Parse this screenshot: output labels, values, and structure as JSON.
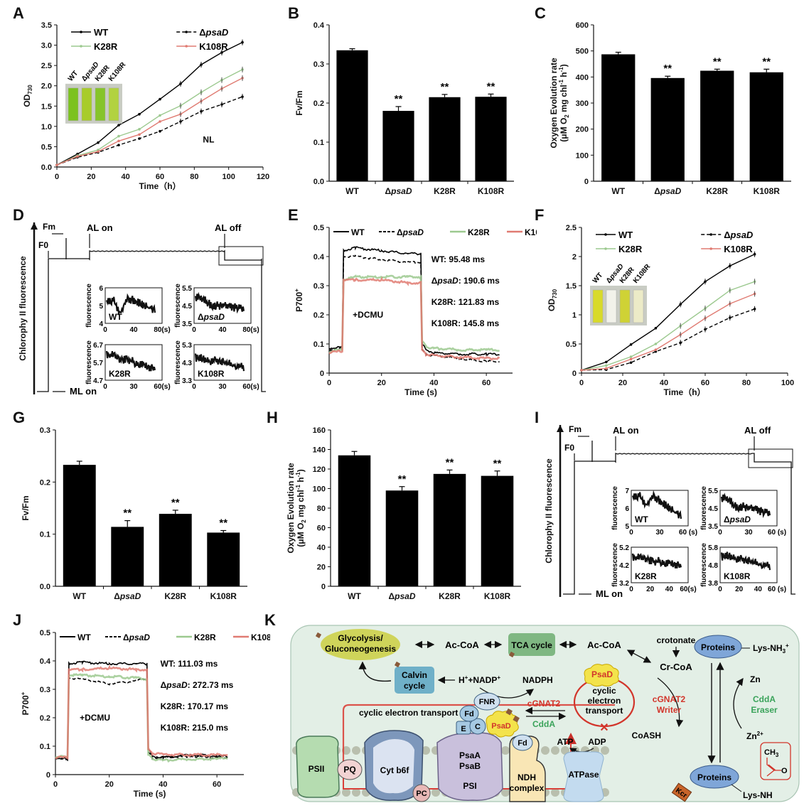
{
  "panel_labels": [
    "A",
    "B",
    "C",
    "D",
    "E",
    "F",
    "G",
    "H",
    "I",
    "J",
    "K"
  ],
  "strain_colors": {
    "WT": "#000000",
    "dpsaD": "#000000",
    "K28R": "#9cc98f",
    "K108R": "#e07b72"
  },
  "chart_data": [
    {
      "id": "A",
      "type": "line",
      "xlabel": "Time（h）",
      "ylabel": "OD730",
      "xlim": [
        0,
        120
      ],
      "ylim": [
        0,
        3.5
      ],
      "xticks": [
        0,
        20,
        40,
        60,
        80,
        100,
        120
      ],
      "yticks": [
        "0.0",
        "0.5",
        "1.0",
        "1.5",
        "2.0",
        "2.5",
        "3.0",
        "3.5"
      ],
      "x": [
        0,
        12,
        24,
        36,
        48,
        60,
        72,
        84,
        96,
        108
      ],
      "series": [
        {
          "name": "WT",
          "color": "#000000",
          "dash": false,
          "values": [
            0.05,
            0.32,
            0.6,
            1.03,
            1.3,
            1.67,
            2.05,
            2.52,
            2.82,
            3.07
          ]
        },
        {
          "name": "ΔpsaD",
          "color": "#000000",
          "dash": true,
          "values": [
            0.05,
            0.24,
            0.36,
            0.54,
            0.7,
            0.88,
            1.12,
            1.37,
            1.54,
            1.73
          ]
        },
        {
          "name": "K28R",
          "color": "#9cc98f",
          "dash": false,
          "values": [
            0.05,
            0.28,
            0.42,
            0.76,
            0.93,
            1.27,
            1.51,
            1.84,
            2.14,
            2.4
          ]
        },
        {
          "name": "K108R",
          "color": "#e07b72",
          "dash": false,
          "values": [
            0.05,
            0.26,
            0.38,
            0.64,
            0.8,
            1.12,
            1.3,
            1.62,
            1.93,
            2.19
          ]
        }
      ],
      "annotation": "NL",
      "inset_labels": [
        "WT",
        "ΔpsaD",
        "K28R",
        "K108R"
      ],
      "legend": "top-left"
    },
    {
      "id": "B",
      "type": "bar",
      "categories": [
        "WT",
        "ΔpsaD",
        "K28R",
        "K108R"
      ],
      "values": [
        0.335,
        0.18,
        0.215,
        0.216
      ],
      "errors": [
        0.004,
        0.011,
        0.007,
        0.007
      ],
      "significance": [
        "",
        "**",
        "**",
        "**"
      ],
      "ylabel": "Fv/Fm",
      "ylim": [
        0,
        0.4
      ],
      "yticks": [
        "0.0",
        "0.1",
        "0.2",
        "0.3",
        "0.4"
      ]
    },
    {
      "id": "C",
      "type": "bar",
      "categories": [
        "WT",
        "ΔpsaD",
        "K28R",
        "K108R"
      ],
      "values": [
        487,
        396,
        424,
        418
      ],
      "errors": [
        8,
        7,
        6,
        12
      ],
      "significance": [
        "",
        "**",
        "**",
        "**"
      ],
      "ylabel": "Oxygen Evolution rate",
      "ylabel2": "(μM O2 mg chl-1 h-1)",
      "ylim": [
        0,
        600
      ],
      "yticks": [
        "0",
        "100",
        "200",
        "300",
        "400",
        "500",
        "600"
      ]
    },
    {
      "id": "E",
      "type": "line",
      "xlabel": "Time (s)",
      "ylabel": "P700+",
      "xlim": [
        0,
        70
      ],
      "ylim": [
        0,
        0.5
      ],
      "xticks": [
        0,
        20,
        40,
        60
      ],
      "yticks": [
        "0",
        "0.1",
        "0.2",
        "0.3",
        "0.4",
        "0.5"
      ],
      "x": [
        0,
        5,
        5.5,
        10,
        20,
        30,
        35,
        35.5,
        37,
        40,
        50,
        60,
        65
      ],
      "series": [
        {
          "name": "WT",
          "color": "#000000",
          "dash": false,
          "values": [
            0.085,
            0.09,
            0.42,
            0.43,
            0.42,
            0.41,
            0.41,
            0.1,
            0.08,
            0.07,
            0.065,
            0.065,
            0.065
          ]
        },
        {
          "name": "ΔpsaD",
          "color": "#000000",
          "dash": true,
          "values": [
            0.08,
            0.085,
            0.4,
            0.4,
            0.39,
            0.38,
            0.38,
            0.08,
            0.065,
            0.06,
            0.05,
            0.04,
            0.04
          ]
        },
        {
          "name": "K28R",
          "color": "#9cc98f",
          "dash": false,
          "values": [
            0.075,
            0.08,
            0.32,
            0.33,
            0.33,
            0.33,
            0.33,
            0.11,
            0.09,
            0.085,
            0.08,
            0.08,
            0.08
          ]
        },
        {
          "name": "K108R",
          "color": "#e07b72",
          "dash": false,
          "values": [
            0.07,
            0.075,
            0.32,
            0.32,
            0.32,
            0.31,
            0.31,
            0.08,
            0.065,
            0.06,
            0.055,
            0.05,
            0.05
          ]
        }
      ],
      "annotation": "+DCMU",
      "half_times": [
        "WT: 95.48 ms",
        "ΔpsaD: 190.6 ms",
        "K28R: 121.83 ms",
        "K108R: 145.8 ms"
      ],
      "legend": "top"
    },
    {
      "id": "F",
      "type": "line",
      "xlabel": "Time（h）",
      "ylabel": "OD730",
      "xlim": [
        0,
        100
      ],
      "ylim": [
        0,
        2.5
      ],
      "xticks": [
        0,
        20,
        40,
        60,
        80,
        100
      ],
      "yticks": [
        "0",
        "0.5",
        "1",
        "1.5",
        "2",
        "2.5"
      ],
      "x": [
        0,
        12,
        24,
        36,
        48,
        60,
        72,
        84
      ],
      "series": [
        {
          "name": "WT",
          "color": "#000000",
          "dash": false,
          "values": [
            0.05,
            0.19,
            0.49,
            0.77,
            1.18,
            1.57,
            1.84,
            2.04
          ]
        },
        {
          "name": "ΔpsaD",
          "color": "#000000",
          "dash": true,
          "values": [
            0.05,
            0.06,
            0.18,
            0.37,
            0.52,
            0.75,
            0.95,
            1.1
          ]
        },
        {
          "name": "K28R",
          "color": "#9cc98f",
          "dash": false,
          "values": [
            0.05,
            0.13,
            0.28,
            0.5,
            0.81,
            1.11,
            1.42,
            1.57
          ]
        },
        {
          "name": "K108R",
          "color": "#e07b72",
          "dash": false,
          "values": [
            0.05,
            0.08,
            0.24,
            0.4,
            0.66,
            0.94,
            1.19,
            1.36
          ]
        }
      ],
      "inset_labels": [
        "WT",
        "ΔpsaD",
        "K28R",
        "K108R"
      ],
      "legend": "top-left"
    },
    {
      "id": "G",
      "type": "bar",
      "categories": [
        "WT",
        "ΔpsaD",
        "K28R",
        "K108R"
      ],
      "values": [
        0.233,
        0.114,
        0.139,
        0.103
      ],
      "errors": [
        0.007,
        0.012,
        0.007,
        0.004
      ],
      "significance": [
        "",
        "**",
        "**",
        "**"
      ],
      "ylabel": "Fv/Fm",
      "ylim": [
        0,
        0.3
      ],
      "yticks": [
        "0.0",
        "0.1",
        "0.2",
        "0.3"
      ]
    },
    {
      "id": "H",
      "type": "bar",
      "categories": [
        "WT",
        "ΔpsaD",
        "K28R",
        "K108R"
      ],
      "values": [
        134,
        98,
        115,
        113
      ],
      "errors": [
        4,
        4,
        4,
        5
      ],
      "significance": [
        "",
        "**",
        "**",
        "**"
      ],
      "ylabel": "Oxygen Evolution rate",
      "ylabel2": "(μM O2 mg chl-1 h-1)",
      "ylim": [
        0,
        160
      ],
      "yticks": [
        "0",
        "20",
        "40",
        "60",
        "80",
        "100",
        "120",
        "140",
        "160"
      ]
    },
    {
      "id": "J",
      "type": "line",
      "xlabel": "Time (s)",
      "ylabel": "P700+",
      "xlim": [
        0,
        70
      ],
      "ylim": [
        0,
        0.5
      ],
      "xticks": [
        0,
        20,
        40,
        60
      ],
      "yticks": [
        "0",
        "0.1",
        "0.2",
        "0.3",
        "0.4",
        "0.5"
      ],
      "x": [
        0,
        4.5,
        5,
        10,
        20,
        30,
        34,
        34.5,
        36,
        40,
        50,
        60,
        64
      ],
      "series": [
        {
          "name": "WT",
          "color": "#000000",
          "dash": false,
          "values": [
            0.06,
            0.055,
            0.39,
            0.395,
            0.39,
            0.39,
            0.39,
            0.09,
            0.065,
            0.06,
            0.07,
            0.065,
            0.065
          ]
        },
        {
          "name": "ΔpsaD",
          "color": "#000000",
          "dash": true,
          "values": [
            0.06,
            0.05,
            0.34,
            0.335,
            0.32,
            0.33,
            0.34,
            0.08,
            0.06,
            0.06,
            0.065,
            0.06,
            0.06
          ]
        },
        {
          "name": "K28R",
          "color": "#9cc98f",
          "dash": false,
          "values": [
            0.065,
            0.06,
            0.35,
            0.35,
            0.345,
            0.34,
            0.335,
            0.07,
            0.055,
            0.05,
            0.055,
            0.055,
            0.06
          ]
        },
        {
          "name": "K108R",
          "color": "#e07b72",
          "dash": false,
          "values": [
            0.06,
            0.06,
            0.37,
            0.37,
            0.375,
            0.37,
            0.37,
            0.09,
            0.075,
            0.07,
            0.07,
            0.068,
            0.07
          ]
        }
      ],
      "annotation": "+DCMU",
      "half_times": [
        "WT: 111.03 ms",
        "ΔpsaD: 272.73 ms",
        "K28R: 170.17 ms",
        "K108R: 215.0 ms"
      ],
      "legend": "top"
    }
  ],
  "fluorescence_panels": [
    {
      "id": "D",
      "ylabel": "Chlorophy II fluorescence",
      "markers": {
        "f0": "F0",
        "fm": "Fm",
        "al_on": "AL on",
        "al_off": "AL off",
        "ml_on": "ML on"
      },
      "insets": [
        {
          "label": "WT",
          "ylabel": "fluorescence",
          "yticks": [
            "4",
            "5",
            "6"
          ],
          "xticks": [
            "0",
            "40",
            "80(s)"
          ],
          "trend": [
            5.3,
            5.3,
            4.6,
            5.4,
            5.3,
            5.1,
            4.9,
            4.8
          ],
          "ylim": [
            4,
            6
          ]
        },
        {
          "label": "ΔpsaD",
          "ylabel": "fluorescence",
          "yticks": [
            "3.5",
            "4.5",
            "5.5"
          ],
          "xticks": [
            "0",
            "40",
            "80(s)"
          ],
          "trend": [
            5.0,
            4.9,
            4.6,
            4.5,
            4.5,
            4.4,
            4.4,
            4.4
          ],
          "ylim": [
            3.5,
            5.5
          ]
        },
        {
          "label": "K28R",
          "ylabel": "fluorescence",
          "yticks": [
            "4.7",
            "5.7",
            "6.7"
          ],
          "xticks": [
            "0",
            "30",
            "60(s)"
          ],
          "trend": [
            6.2,
            6.1,
            5.8,
            5.9,
            5.7,
            5.6,
            5.4,
            5.3
          ],
          "ylim": [
            4.7,
            6.7
          ]
        },
        {
          "label": "K108R",
          "ylabel": "fluorescence",
          "yticks": [
            "3.3",
            "4.3",
            "5.3"
          ],
          "xticks": [
            "0",
            "30",
            "60(s)"
          ],
          "trend": [
            4.6,
            4.5,
            4.4,
            4.4,
            4.3,
            4.2,
            4.1,
            4.0
          ],
          "ylim": [
            3.3,
            5.3
          ]
        }
      ]
    },
    {
      "id": "I",
      "ylabel": "Chlorophy II fluorescence",
      "markers": {
        "f0": "F0",
        "fm": "Fm",
        "al_on": "AL on",
        "al_off": "AL off",
        "ml_on": "ML on"
      },
      "insets": [
        {
          "label": "WT",
          "ylabel": "fluorescence",
          "yticks": [
            "5",
            "6",
            "7"
          ],
          "xticks": [
            "0",
            "30",
            "60 (s)"
          ],
          "trend": [
            6.7,
            6.7,
            6.2,
            6.7,
            6.4,
            6.1,
            5.8,
            5.6
          ],
          "ylim": [
            5,
            7
          ]
        },
        {
          "label": "ΔpsaD",
          "ylabel": "fluorescence",
          "yticks": [
            "3.5",
            "4.5",
            "5.5"
          ],
          "xticks": [
            "0",
            "30",
            "60 (s)"
          ],
          "trend": [
            5.1,
            5.0,
            4.6,
            4.6,
            4.5,
            4.4,
            4.3,
            4.3
          ],
          "ylim": [
            3.5,
            5.5
          ]
        },
        {
          "label": "K28R",
          "ylabel": "fluorescence",
          "yticks": [
            "3.2",
            "4.2",
            "5.2"
          ],
          "xticks": [
            "0",
            "20",
            "40",
            "60(s)"
          ],
          "trend": [
            4.7,
            4.6,
            4.5,
            4.4,
            4.4,
            4.3,
            4.2,
            4.1
          ],
          "ylim": [
            3.2,
            5.2
          ]
        },
        {
          "label": "K108R",
          "ylabel": "fluorescence",
          "yticks": [
            "3.8",
            "4.8",
            "5.8"
          ],
          "xticks": [
            "0",
            "20",
            "40",
            "60 (s)"
          ],
          "trend": [
            5.3,
            5.3,
            5.2,
            5.1,
            5.0,
            4.9,
            4.8,
            4.7
          ],
          "ylim": [
            3.8,
            5.8
          ]
        }
      ]
    }
  ],
  "diagram_K": {
    "glycolysis": "Glycolysis/\nGluconeogenesis",
    "ac_coa_1": "Ac-CoA",
    "tca": "TCA cycle",
    "ac_coa_2": "Ac-CoA",
    "crotonate": "crotonate",
    "cr_coa": "Cr-CoA",
    "proteins_top": "Proteins",
    "lys_nh3": "Lys-NH3+",
    "calvin": "Calvin\ncycle",
    "h_nadp": "H+ +NADP+",
    "nadph": "NADPH",
    "cyclic_top": "cyclic electron transport",
    "fnr": "FNR",
    "fd": "Fd",
    "e": "E",
    "c": "C",
    "psad": "PsaD",
    "cgnat2": "cGNAT2",
    "cdda": "CddA",
    "psad_cloud": "PsaD",
    "cyclic_ring": "cyclic\nelectron\ntransport",
    "writer": "cGNAT2\nWriter",
    "eraser": "CddA\nEraser",
    "zn": "Zn",
    "zn2": "Zn2+",
    "coash": "CoASH",
    "psii": "PSII",
    "pq": "PQ",
    "cytb6f": "Cyt b6f",
    "pc": "PC",
    "psi_a": "PsaA",
    "psi_b": "PsaB",
    "psi": "PSI",
    "ndh_fd": "Fd",
    "ndh": "NDH\ncomplex",
    "atp": "ATP",
    "adp": "ADP",
    "atpase": "ATPase",
    "proteins_bottom": "Proteins",
    "kcr": "Kcr",
    "lys_nh": "Lys-NH",
    "ch3": "CH3",
    "o": "O"
  }
}
